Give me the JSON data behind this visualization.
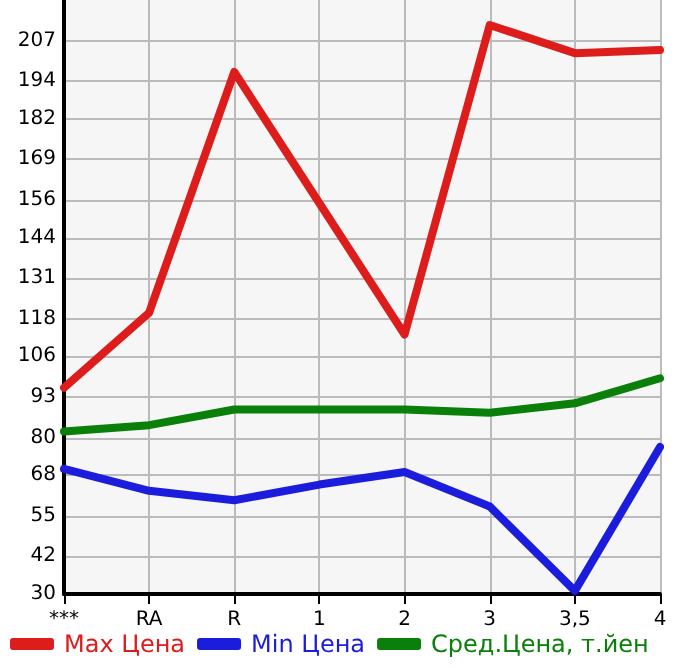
{
  "chart_data": {
    "type": "line",
    "categories": [
      "***",
      "RA",
      "R",
      "1",
      "2",
      "3",
      "3,5",
      "4"
    ],
    "series": [
      {
        "name": "Max Цена",
        "color": "#dd1c1c",
        "values": [
          96,
          120,
          197,
          155,
          113,
          212,
          203,
          204
        ]
      },
      {
        "name": "Min Цена",
        "color": "#1c1cdd",
        "values": [
          70,
          63,
          60,
          65,
          69,
          58,
          31,
          77
        ]
      },
      {
        "name": "Сред.Цена, т.йен",
        "color": "#0a800a",
        "values": [
          82,
          84,
          89,
          89,
          89,
          88,
          91,
          99
        ]
      }
    ],
    "ylim": [
      30,
      220
    ],
    "yticks": [
      30,
      42,
      55,
      68,
      80,
      93,
      106,
      118,
      131,
      144,
      156,
      169,
      182,
      194,
      207
    ],
    "grid": true,
    "legend": "bottom",
    "marker": "none",
    "line_style": "solid"
  }
}
